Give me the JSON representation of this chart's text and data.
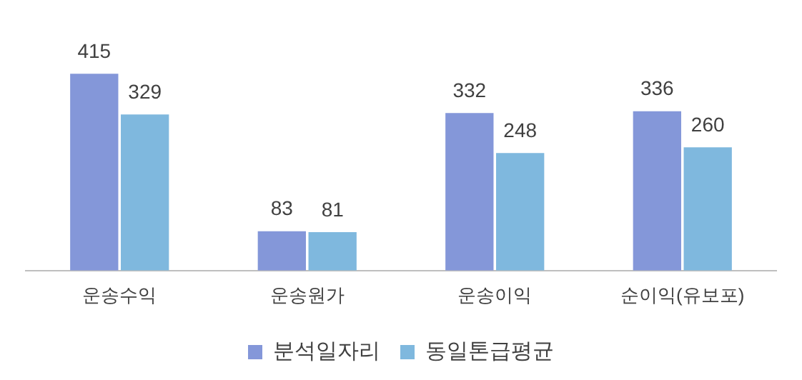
{
  "chart_data": {
    "type": "bar",
    "categories": [
      "운송수익",
      "운송원가",
      "운송이익",
      "순이익(유보포)"
    ],
    "series": [
      {
        "name": "분석일자리",
        "color": "#8497d9",
        "values": [
          415,
          83,
          332,
          336
        ]
      },
      {
        "name": "동일톤급평균",
        "color": "#7fb8de",
        "values": [
          329,
          81,
          248,
          260
        ]
      }
    ],
    "data_labels": true,
    "legend": "bottom",
    "grid": false
  }
}
